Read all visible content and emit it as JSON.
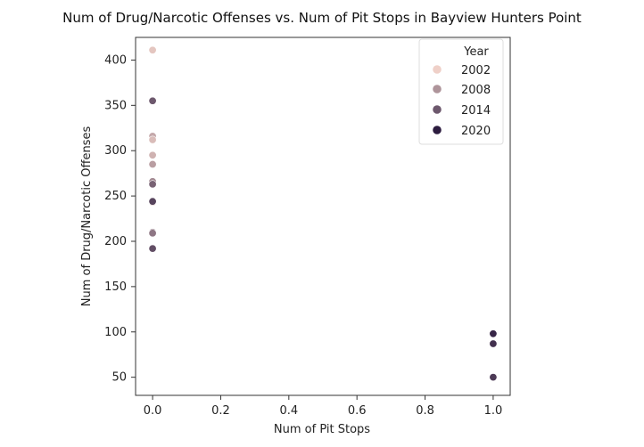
{
  "chart_data": {
    "type": "scatter",
    "title": "Num of Drug/Narcotic Offenses vs. Num of Pit Stops in Bayview Hunters Point",
    "xlabel": "Num of Pit Stops",
    "ylabel": "Num of Drug/Narcotic Offenses",
    "xlim": [
      -0.05,
      1.05
    ],
    "ylim": [
      30,
      425
    ],
    "xticks": [
      0.0,
      0.2,
      0.4,
      0.6,
      0.8,
      1.0
    ],
    "xtick_labels": [
      "0.0",
      "0.2",
      "0.4",
      "0.6",
      "0.8",
      "1.0"
    ],
    "yticks": [
      50,
      100,
      150,
      200,
      250,
      300,
      350,
      400
    ],
    "ytick_labels": [
      "50",
      "100",
      "150",
      "200",
      "250",
      "300",
      "350",
      "400"
    ],
    "grid": false,
    "legend": {
      "title": "Year",
      "placement": "top-right",
      "entries": [
        "2002",
        "2008",
        "2014",
        "2020"
      ]
    },
    "points": [
      {
        "x": 0,
        "y": 411,
        "year": 2003
      },
      {
        "x": 0,
        "y": 316,
        "year": 2006
      },
      {
        "x": 0,
        "y": 312,
        "year": 2004
      },
      {
        "x": 0,
        "y": 295,
        "year": 2005
      },
      {
        "x": 0,
        "y": 285,
        "year": 2007
      },
      {
        "x": 0,
        "y": 266,
        "year": 2009
      },
      {
        "x": 0,
        "y": 243,
        "year": 2004
      },
      {
        "x": 0,
        "y": 210,
        "year": 2010
      },
      {
        "x": 0,
        "y": 209,
        "year": 2011
      },
      {
        "x": 0,
        "y": 355,
        "year": 2014
      },
      {
        "x": 0,
        "y": 263,
        "year": 2013
      },
      {
        "x": 0,
        "y": 244,
        "year": 2016
      },
      {
        "x": 0,
        "y": 192,
        "year": 2015
      },
      {
        "x": 1,
        "y": 98,
        "year": 2019
      },
      {
        "x": 1,
        "y": 87,
        "year": 2018
      },
      {
        "x": 1,
        "y": 50,
        "year": 2017
      }
    ],
    "hue": {
      "field": "year",
      "min": 2002,
      "max": 2020,
      "color_low": "#efd0c8",
      "color_high": "#2c1c3f"
    }
  }
}
